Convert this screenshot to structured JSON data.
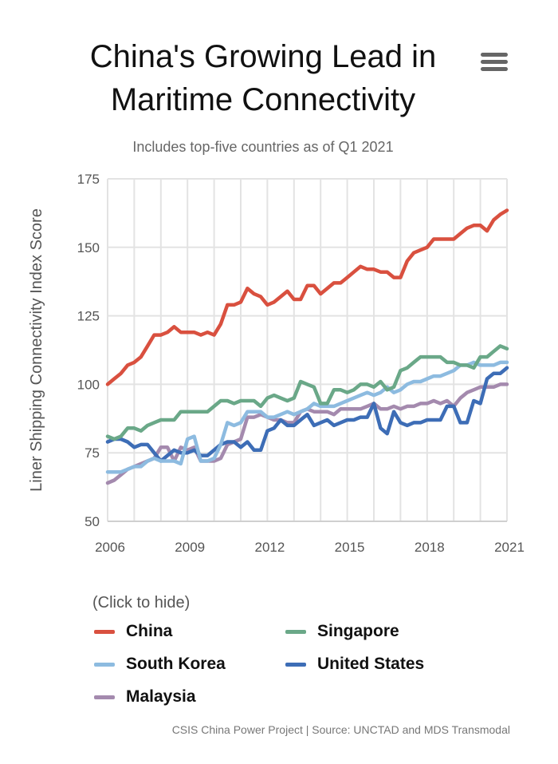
{
  "title": "China's Growing Lead in Maritime Connectivity",
  "subtitle": "Includes top-five countries as of Q1 2021",
  "legend_hint": "(Click to hide)",
  "credits": "CSIS China Power Project | Source: UNCTAD and MDS Transmodal",
  "menu_icon": "hamburger-icon",
  "chart_data": {
    "type": "line",
    "title": "China's Growing Lead in Maritime Connectivity",
    "subtitle": "Includes top-five countries as of Q1 2021",
    "xlabel": "",
    "ylabel": "Liner Shipping Connectivity Index Score",
    "xlim": [
      2006,
      2021
    ],
    "ylim": [
      50,
      175
    ],
    "x_ticks": [
      "2006",
      "2009",
      "2012",
      "2015",
      "2018",
      "2021"
    ],
    "y_ticks": [
      "50",
      "75",
      "100",
      "125",
      "150",
      "175"
    ],
    "grid": true,
    "legend_position": "bottom",
    "x_step": "quarterly (Q1 2006 - Q1 2021)",
    "series": [
      {
        "name": "China",
        "color": "#d9503f",
        "values": [
          100,
          102,
          104,
          107,
          108,
          110,
          114,
          118,
          118,
          119,
          121,
          119,
          119,
          119,
          118,
          119,
          118,
          122,
          129,
          129,
          130,
          135,
          133,
          132,
          129,
          130,
          132,
          134,
          131,
          131,
          136,
          136,
          133,
          135,
          137,
          137,
          139,
          141,
          143,
          142,
          142,
          141,
          141,
          139,
          139,
          145,
          148,
          149,
          150,
          153,
          153,
          153,
          153,
          155,
          157,
          158,
          158,
          156,
          160,
          162,
          163.5
        ]
      },
      {
        "name": "Singapore",
        "color": "#6aa888",
        "values": [
          81,
          80,
          81,
          84,
          84,
          83,
          85,
          86,
          87,
          87,
          87,
          90,
          90,
          90,
          90,
          90,
          92,
          94,
          94,
          93,
          94,
          94,
          94,
          92,
          95,
          96,
          95,
          94,
          95,
          101,
          100,
          99,
          93,
          93,
          98,
          98,
          97,
          98,
          100,
          100,
          99,
          101,
          98,
          99,
          105,
          106,
          108,
          110,
          110,
          110,
          110,
          108,
          108,
          107,
          107,
          106,
          110,
          110,
          112,
          114,
          113
        ]
      },
      {
        "name": "South Korea",
        "color": "#8dbbe0",
        "values": [
          68,
          68,
          68,
          69,
          70,
          70,
          72,
          73,
          72,
          72,
          72,
          71,
          80,
          81,
          72,
          72,
          73,
          78,
          86,
          85,
          86,
          90,
          90,
          90,
          88,
          88,
          89,
          90,
          89,
          90,
          91,
          93,
          92,
          92,
          92,
          93,
          94,
          95,
          96,
          97,
          96,
          97,
          99,
          97,
          98,
          100,
          101,
          101,
          102,
          103,
          103,
          104,
          105,
          107,
          107,
          108,
          107,
          107,
          107,
          108,
          108
        ]
      },
      {
        "name": "United States",
        "color": "#3d6db6",
        "values": [
          79,
          80,
          80,
          79,
          77,
          78,
          78,
          75,
          72,
          74,
          76,
          75,
          75,
          76,
          74,
          74,
          76,
          78,
          79,
          79,
          77,
          79,
          76,
          76,
          83,
          84,
          87,
          85,
          85,
          87,
          89,
          85,
          86,
          87,
          85,
          86,
          87,
          87,
          88,
          88,
          93,
          84,
          82,
          90,
          86,
          85,
          86,
          86,
          87,
          87,
          87,
          92,
          92,
          86,
          86,
          94,
          93,
          102,
          104,
          104,
          106
        ]
      },
      {
        "name": "Malaysia",
        "color": "#a48aae",
        "values": [
          64,
          65,
          67,
          69,
          70,
          71,
          72,
          73,
          77,
          77,
          72,
          77,
          76,
          77,
          72,
          72,
          72,
          73,
          78,
          79,
          80,
          88,
          88,
          89,
          88,
          87,
          87,
          86,
          86,
          90,
          91,
          90,
          90,
          90,
          89,
          91,
          91,
          91,
          91,
          92,
          93,
          91,
          91,
          92,
          91,
          92,
          92,
          93,
          93,
          94,
          93,
          94,
          92,
          95,
          97,
          98,
          99,
          99,
          99,
          100,
          100
        ]
      }
    ]
  }
}
